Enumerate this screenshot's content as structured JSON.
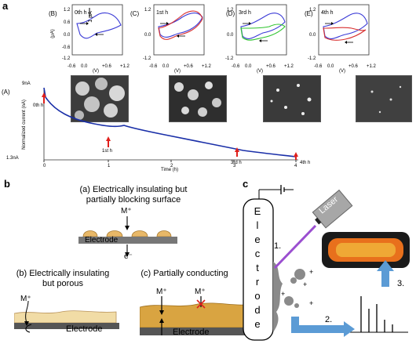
{
  "panel_a": {
    "letter": "a",
    "cv_panels": [
      {
        "id": "B",
        "label": "(B)",
        "time": "0th h",
        "has_scale": true,
        "scale_label": "1 μA"
      },
      {
        "id": "C",
        "label": "(C)",
        "time": "1st h",
        "has_scale": false
      },
      {
        "id": "D",
        "label": "(D)",
        "time": "3rd h",
        "has_scale": false
      },
      {
        "id": "E",
        "label": "(E)",
        "time": "4th h",
        "has_scale": false
      }
    ],
    "cv_y_ticks": [
      "1.2",
      "0.6",
      "0.0",
      "-0.6",
      "-1.2"
    ],
    "cv_x_ticks": [
      "-0.6",
      "0.0",
      "+0.6",
      "+1.2"
    ],
    "cv_y_unit": "(μA)",
    "cv_x_unit": "(V)",
    "trace": {
      "label": "(A)",
      "y_top": "9nA",
      "y_bottom": "1.3nA",
      "y_axis_label": "Normalized current (nA)",
      "x_axis_label": "Time (h)",
      "x_ticks": [
        "0",
        "1",
        "2",
        "3",
        "4"
      ],
      "markers": [
        "0th h",
        "1st h",
        "3rd h",
        "4th h"
      ]
    }
  },
  "panel_b": {
    "letter": "b",
    "a_title": "(a) Electrically insulating but partially blocking surface",
    "a_title_line1": "(a) Electrically insulating but",
    "a_title_line2": "partially blocking surface",
    "ion": "M⁺",
    "electron": "e⁻",
    "electrode": "Electrode",
    "b_title_line1": "(b) Electrically insulating",
    "b_title_line2": "but porous",
    "c_title": "(c) Partially conducting"
  },
  "panel_c": {
    "letter": "c",
    "electrode_letters": [
      "E",
      "l",
      "e",
      "c",
      "t",
      "r",
      "o",
      "d",
      "e"
    ],
    "laser": "Laser",
    "steps": [
      "1.",
      "2.",
      "3."
    ]
  },
  "colors": {
    "trace_blue": "#1a2fa8",
    "marker_red": "#e0201c",
    "cv_blue": "#3a3ad6",
    "cv_red": "#d83030",
    "cv_green": "#2ec42e",
    "film_gold": "#d9a441",
    "arrow_blue": "#5b9bd5",
    "laser_purple": "#9b4fd0"
  }
}
